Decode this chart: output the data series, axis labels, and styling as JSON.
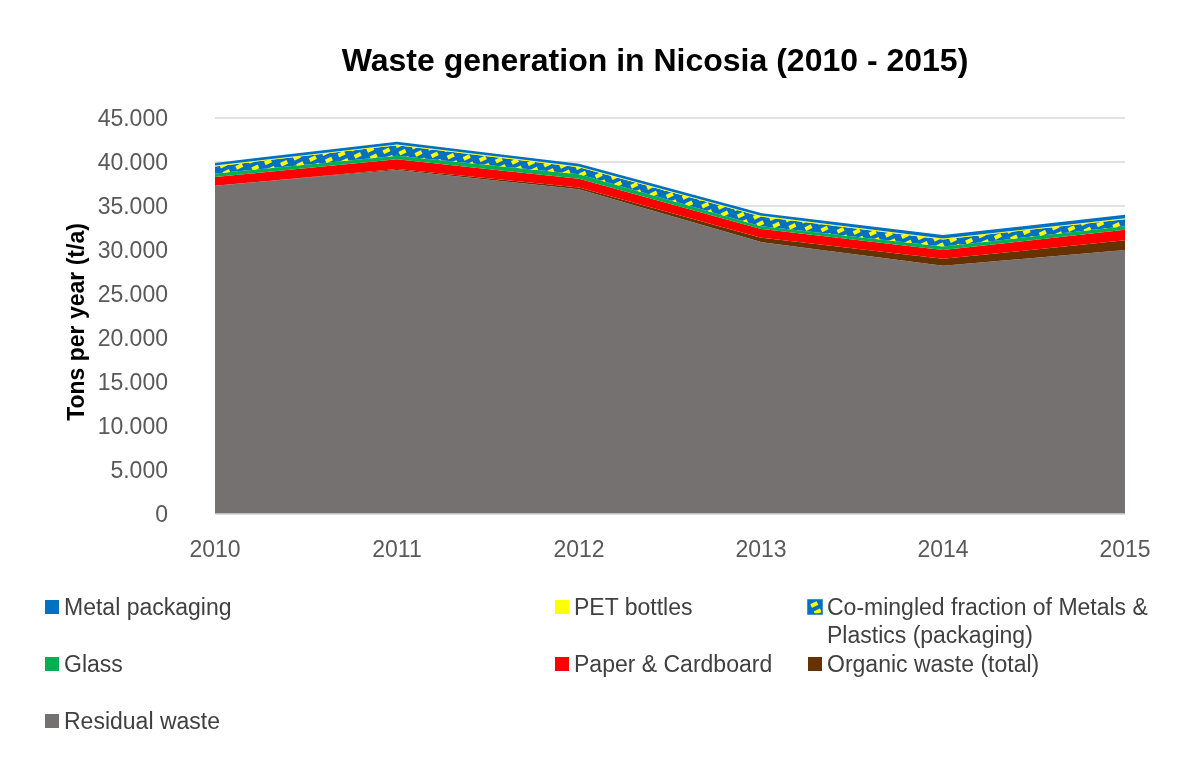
{
  "chart_data": {
    "type": "area",
    "stacked": true,
    "title": "Waste generation in Nicosia (2010 - 2015)",
    "ylabel": "Tons per year (t/a)",
    "categories": [
      "2010",
      "2011",
      "2012",
      "2013",
      "2014",
      "2015"
    ],
    "series": [
      {
        "name": "Residual waste",
        "color": "#767171",
        "values": [
          37300,
          39100,
          36900,
          30900,
          28200,
          30000
        ]
      },
      {
        "name": "Organic waste (total)",
        "color": "#663300",
        "values": [
          0,
          100,
          200,
          500,
          800,
          1100
        ]
      },
      {
        "name": "Paper & Cardboard",
        "color": "#ff0000",
        "values": [
          1000,
          1100,
          1000,
          1000,
          1000,
          1200
        ]
      },
      {
        "name": "Glass",
        "color": "#00b050",
        "values": [
          400,
          400,
          500,
          300,
          400,
          400
        ]
      },
      {
        "name": "Co-mingled fraction of Metals & Plastics (packaging)",
        "color": "#0070c0",
        "values": [
          800,
          1200,
          800,
          1100,
          800,
          800
        ]
      },
      {
        "name": "PET bottles",
        "color": "#ffff00",
        "values": [
          100,
          100,
          100,
          100,
          100,
          100
        ]
      },
      {
        "name": "Metal packaging",
        "color": "#0070c0",
        "values": [
          300,
          300,
          300,
          300,
          400,
          400
        ]
      }
    ],
    "ylim": [
      0,
      45000
    ],
    "yticks": [
      0,
      {
        "value": 5000,
        "label": "5.000"
      },
      {
        "value": 10000,
        "label": "10.000"
      },
      {
        "value": 15000,
        "label": "15.000"
      },
      {
        "value": 20000,
        "label": "20.000"
      },
      {
        "value": 25000,
        "label": "25.000"
      },
      {
        "value": 30000,
        "label": "30.000"
      },
      {
        "value": 35000,
        "label": "35.000"
      },
      {
        "value": 40000,
        "label": "40.000"
      },
      {
        "value": 45000,
        "label": "45.000"
      }
    ],
    "grid": "y",
    "legend": "bottom"
  }
}
